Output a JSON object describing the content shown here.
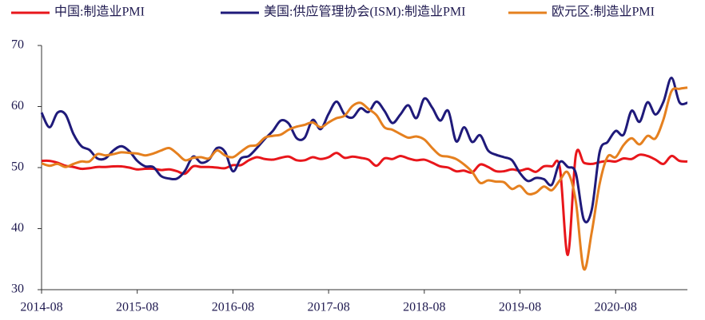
{
  "chart_data": {
    "type": "line",
    "categories": [
      "2014-08",
      null,
      null,
      null,
      null,
      null,
      null,
      null,
      null,
      null,
      null,
      null,
      "2015-08",
      null,
      null,
      null,
      null,
      null,
      null,
      null,
      null,
      null,
      null,
      null,
      "2016-08",
      null,
      null,
      null,
      null,
      null,
      null,
      null,
      null,
      null,
      null,
      null,
      "2017-08",
      null,
      null,
      null,
      null,
      null,
      null,
      null,
      null,
      null,
      null,
      null,
      "2018-08",
      null,
      null,
      null,
      null,
      null,
      null,
      null,
      null,
      null,
      null,
      null,
      "2019-08",
      null,
      null,
      null,
      null,
      null,
      null,
      null,
      null,
      null,
      null,
      null,
      "2020-08",
      null,
      null,
      null,
      null,
      null,
      null,
      null,
      null,
      null
    ],
    "series": [
      {
        "name": "中国:制造业PMI",
        "color": "#e8161b",
        "values": [
          51.1,
          51.1,
          50.8,
          50.3,
          50.1,
          49.8,
          49.9,
          50.1,
          50.1,
          50.2,
          50.2,
          50.0,
          49.7,
          49.8,
          49.8,
          49.6,
          49.7,
          49.4,
          49.0,
          50.2,
          50.1,
          50.1,
          50.0,
          49.9,
          50.4,
          50.4,
          51.2,
          51.7,
          51.4,
          51.3,
          51.6,
          51.8,
          51.2,
          51.2,
          51.7,
          51.4,
          51.7,
          52.4,
          51.6,
          51.8,
          51.6,
          51.3,
          50.3,
          51.5,
          51.4,
          51.9,
          51.5,
          51.2,
          51.3,
          50.8,
          50.2,
          50.0,
          49.4,
          49.5,
          49.2,
          50.5,
          50.1,
          49.4,
          49.4,
          49.7,
          49.5,
          49.8,
          49.3,
          50.2,
          50.2,
          50.0,
          35.7,
          52.0,
          50.8,
          50.6,
          50.9,
          51.1,
          51.0,
          51.5,
          51.4,
          52.1,
          51.9,
          51.3,
          50.6,
          51.9,
          51.1,
          51.0
        ]
      },
      {
        "name": "美国:供应管理协会(ISM):制造业PMI",
        "color": "#1f1a7a",
        "values": [
          59.0,
          56.6,
          59.0,
          58.7,
          55.5,
          53.5,
          52.9,
          51.5,
          51.5,
          52.8,
          53.5,
          52.7,
          51.1,
          50.2,
          50.1,
          48.6,
          48.2,
          48.2,
          49.5,
          51.8,
          50.8,
          51.3,
          53.2,
          52.6,
          49.4,
          51.5,
          51.9,
          53.2,
          54.7,
          56.0,
          57.7,
          57.2,
          54.8,
          54.9,
          57.8,
          56.3,
          58.8,
          60.8,
          58.7,
          58.2,
          59.7,
          59.1,
          60.8,
          59.3,
          57.3,
          58.7,
          60.2,
          58.1,
          61.3,
          59.8,
          57.7,
          59.3,
          54.3,
          56.6,
          54.2,
          55.3,
          52.8,
          52.1,
          51.7,
          51.2,
          49.1,
          47.8,
          48.3,
          48.1,
          47.2,
          50.9,
          50.1,
          49.1,
          41.5,
          43.1,
          52.6,
          54.2,
          56.0,
          55.4,
          59.3,
          57.5,
          60.7,
          58.7,
          60.8,
          64.7,
          60.7,
          60.6
        ]
      },
      {
        "name": "欧元区:制造业PMI",
        "color": "#e5801f",
        "values": [
          50.7,
          50.3,
          50.6,
          50.1,
          50.6,
          51.0,
          51.0,
          52.2,
          52.0,
          52.2,
          52.5,
          52.4,
          52.3,
          52.0,
          52.3,
          52.8,
          53.2,
          52.3,
          51.2,
          51.6,
          51.7,
          51.5,
          52.8,
          52.0,
          51.7,
          52.6,
          53.5,
          53.7,
          54.9,
          55.2,
          55.4,
          56.2,
          56.7,
          57.0,
          57.4,
          56.6,
          57.4,
          58.1,
          58.5,
          60.1,
          60.6,
          59.6,
          58.6,
          56.6,
          56.2,
          55.5,
          54.9,
          55.1,
          54.6,
          53.2,
          52.0,
          51.8,
          51.4,
          50.5,
          49.3,
          47.5,
          47.9,
          47.7,
          47.6,
          46.5,
          47.0,
          45.7,
          45.9,
          46.9,
          46.3,
          47.9,
          49.2,
          44.5,
          33.4,
          39.4,
          47.4,
          51.8,
          51.7,
          53.7,
          54.8,
          53.8,
          55.2,
          54.8,
          57.9,
          62.5,
          62.9,
          63.1
        ]
      }
    ],
    "ylim": [
      30,
      70
    ],
    "yticks": [
      30,
      40,
      50,
      60,
      70
    ]
  }
}
